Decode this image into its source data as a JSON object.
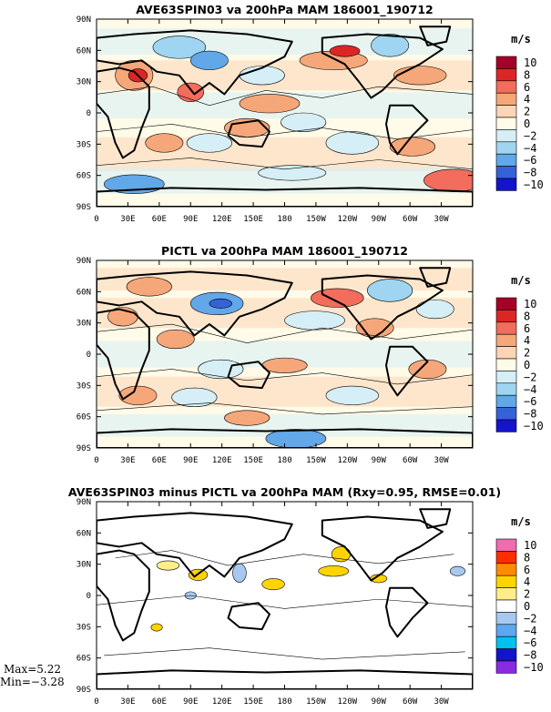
{
  "panels": [
    {
      "title": "AVE63SPIN03 va 200hPa MAM 186001_190712",
      "unit": "m/s",
      "palette": "diverging_blue_red",
      "levels": [
        "10",
        "8",
        "6",
        "4",
        "2",
        "0",
        "−2",
        "−4",
        "−6",
        "−8",
        "−10"
      ]
    },
    {
      "title": "PICTL va 200hPa MAM 186001_190712",
      "unit": "m/s",
      "palette": "diverging_blue_red",
      "levels": [
        "10",
        "8",
        "6",
        "4",
        "2",
        "0",
        "−2",
        "−4",
        "−6",
        "−8",
        "−10"
      ]
    },
    {
      "title": "AVE63SPIN03 minus PICTL va 200hPa MAM (Rxy=0.95, RMSE=0.01)",
      "unit": "m/s",
      "palette": "difference_rainbow",
      "levels": [
        "10",
        "8",
        "6",
        "4",
        "2",
        "0",
        "−2",
        "−4",
        "−6",
        "−8",
        "−10"
      ],
      "stats": {
        "max": "Max=5.22",
        "min": "Min=−3.28"
      }
    }
  ],
  "lat_labels": [
    "90N",
    "60N",
    "30N",
    "0",
    "30S",
    "60S",
    "90S"
  ],
  "lon_labels": [
    "0",
    "30E",
    "60E",
    "90E",
    "120E",
    "150E",
    "180",
    "150W",
    "120W",
    "90W",
    "60W",
    "30W"
  ],
  "colors": {
    "diverging_blue_red": [
      "#a50026",
      "#dc2626",
      "#f26d5b",
      "#f5a77a",
      "#fbd5b5",
      "#fffbe8",
      "#d6eef6",
      "#9fd5f0",
      "#62a7e7",
      "#3662d8",
      "#1414cc"
    ],
    "difference_rainbow": [
      "#f06bb0",
      "#ff2d00",
      "#ff8c00",
      "#ffd400",
      "#ffee88",
      "#ffffff",
      "#a8c8f0",
      "#5aa8f0",
      "#00c0f0",
      "#1414cc",
      "#8a2be2"
    ]
  }
}
